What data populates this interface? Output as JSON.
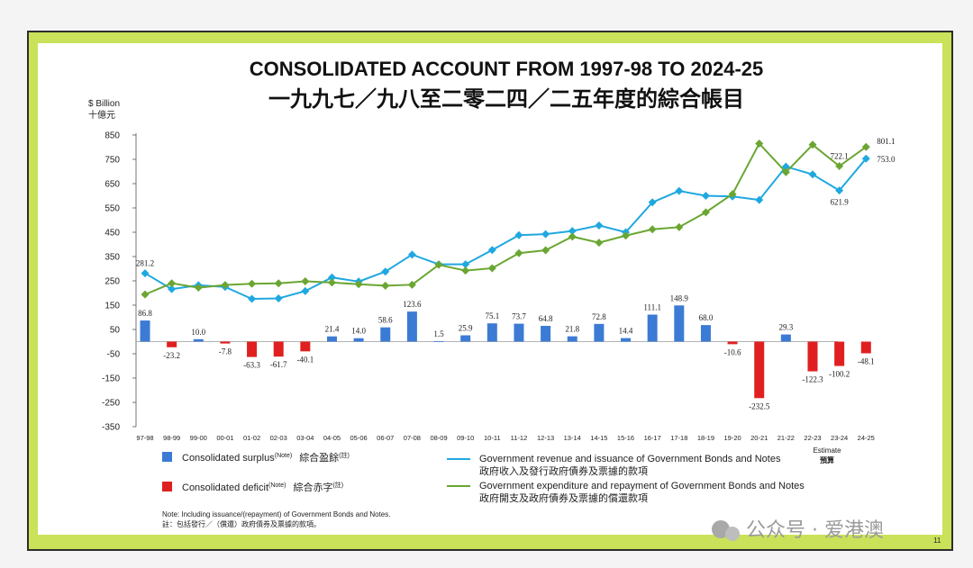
{
  "chart_data": {
    "type": "bar+line",
    "title": "CONSOLIDATED ACCOUNT FROM 1997-98 TO 2024-25",
    "subtitle": "一九九七／九八至二零二四／二五年度的綜合帳目",
    "ylabel_en": "$ Billion",
    "ylabel_zh": "十億元",
    "ylim": [
      -350,
      850
    ],
    "yticks": [
      850,
      750,
      650,
      550,
      450,
      350,
      250,
      150,
      50,
      -50,
      -150,
      -250,
      -350
    ],
    "categories": [
      "97-98",
      "98-99",
      "99-00",
      "00-01",
      "01-02",
      "02-03",
      "03-04",
      "04-05",
      "05-06",
      "06-07",
      "07-08",
      "08-09",
      "09-10",
      "10-11",
      "11-12",
      "12-13",
      "13-14",
      "14-15",
      "15-16",
      "16-17",
      "17-18",
      "18-19",
      "19-20",
      "20-21",
      "21-22",
      "22-23",
      "23-24",
      "24-25"
    ],
    "estimate_label_en": "Estimate",
    "estimate_label_zh": "預算",
    "balance": [
      86.8,
      -23.2,
      10.0,
      -7.8,
      -63.3,
      -61.7,
      -40.1,
      21.4,
      14.0,
      58.6,
      123.6,
      1.5,
      25.9,
      75.1,
      73.7,
      64.8,
      21.8,
      72.8,
      14.4,
      111.1,
      148.9,
      68.0,
      -10.6,
      -232.5,
      29.3,
      -122.3,
      -100.2,
      -48.1
    ],
    "bar_labels": [
      "86.8",
      "-23.2",
      "10.0",
      "-7.8",
      "-63.3",
      "-61.7",
      "-40.1",
      "21.4",
      "14.0",
      "58.6",
      "123.6",
      "1.5",
      "25.9",
      "75.1",
      "73.7",
      "64.8",
      "21.8",
      "72.8",
      "14.4",
      "111.1",
      "148.9",
      "68.0",
      "-10.6",
      "-232.5",
      "29.3",
      "-122.3",
      "-100.2",
      "-48.1"
    ],
    "series": [
      {
        "name": "Government revenue and issuance of Government Bonds and Notes",
        "name_zh": "政府收入及發行政府債券及票據的款項",
        "color": "#1fa8e0",
        "values": [
          281.2,
          216,
          232,
          225,
          176,
          178,
          208,
          264,
          247,
          288,
          358,
          318,
          318,
          377,
          438,
          442,
          455,
          478,
          450,
          573,
          620,
          600,
          597,
          583,
          720,
          688,
          621.9,
          753.0
        ]
      },
      {
        "name": "Government expenditure and repayment of Government Bonds and Notes",
        "name_zh": "政府開支及政府債券及票據的償還款項",
        "color": "#6aa632",
        "values": [
          194,
          240,
          222,
          233,
          238,
          240,
          248,
          243,
          236,
          230,
          234,
          316,
          292,
          302,
          364,
          376,
          432,
          407,
          436,
          462,
          471,
          532,
          607,
          815,
          697,
          810,
          722.1,
          801.1
        ]
      }
    ],
    "point_labels": [
      {
        "index": 0,
        "series": 0,
        "text": "281.2"
      },
      {
        "index": 26,
        "series": 0,
        "text": "621.9"
      },
      {
        "index": 27,
        "series": 0,
        "text": "753.0"
      },
      {
        "index": 26,
        "series": 1,
        "text": "722.1"
      },
      {
        "index": 27,
        "series": 1,
        "text": "801.1"
      }
    ],
    "legend": [
      {
        "type": "bar",
        "color": "#3b7bd4",
        "en": "Consolidated surplus",
        "sup": "(Note)",
        "zh": "綜合盈餘",
        "zh_sup": "(註)"
      },
      {
        "type": "bar",
        "color": "#e02020",
        "en": "Consolidated deficit",
        "sup": "(Note)",
        "zh": "綜合赤字",
        "zh_sup": "(註)"
      }
    ],
    "legend_placement": "bottom"
  },
  "note_en": "Note: Including issuance/(repayment) of Government Bonds and Notes.",
  "note_zh": "註：包括發行／（償還）政府債券及票據的款項。",
  "page_number": "11",
  "watermark": "公众号 · 爱港澳",
  "colors": {
    "frame": "#c9e25a",
    "surplus": "#3b7bd4",
    "deficit": "#e02020",
    "revenue": "#1fa8e0",
    "expenditure": "#6aa632"
  }
}
